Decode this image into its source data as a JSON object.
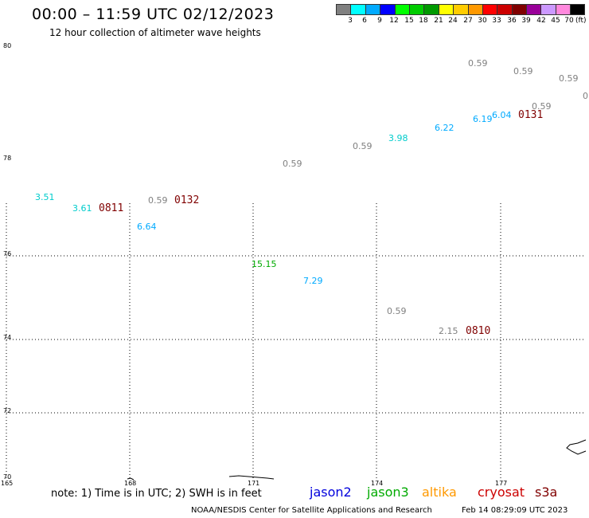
{
  "header": {
    "title": "00:00 – 11:59 UTC 02/12/2023",
    "subtitle": "12 hour collection of altimeter wave heights"
  },
  "legend": {
    "unit": "(ft)",
    "bins": [
      {
        "label": "3",
        "color": "#808080"
      },
      {
        "label": "6",
        "color": "#00ffff"
      },
      {
        "label": "9",
        "color": "#00aaff"
      },
      {
        "label": "12",
        "color": "#0000ff"
      },
      {
        "label": "15",
        "color": "#00ff00"
      },
      {
        "label": "18",
        "color": "#00cc00"
      },
      {
        "label": "21",
        "color": "#009900"
      },
      {
        "label": "24",
        "color": "#ffff00"
      },
      {
        "label": "27",
        "color": "#ffcc00"
      },
      {
        "label": "30",
        "color": "#ff9900"
      },
      {
        "label": "33",
        "color": "#ff0000"
      },
      {
        "label": "36",
        "color": "#cc0000"
      },
      {
        "label": "39",
        "color": "#800000"
      },
      {
        "label": "42",
        "color": "#990099"
      },
      {
        "label": "45",
        "color": "#cc99ff"
      },
      {
        "label": "70",
        "color": "#ff88dd"
      },
      {
        "label": "",
        "color": "#000000"
      }
    ]
  },
  "map": {
    "lat_labels": [
      "80",
      "78",
      "76",
      "74",
      "72",
      "70"
    ],
    "lon_labels": [
      "165",
      "168",
      "171",
      "174",
      "177"
    ],
    "wave_heights": [
      {
        "value": "0.59",
        "color": "#808080"
      },
      {
        "value": "0.59",
        "color": "#808080"
      },
      {
        "value": "0.59",
        "color": "#808080"
      },
      {
        "value": "0",
        "color": "#808080"
      },
      {
        "value": "0.59",
        "color": "#808080"
      },
      {
        "value": "6.04",
        "color": "#00aaff"
      },
      {
        "value": "6.19",
        "color": "#00aaff"
      },
      {
        "value": "6.22",
        "color": "#00aaff"
      },
      {
        "value": "3.98",
        "color": "#00cccc"
      },
      {
        "value": "0.59",
        "color": "#808080"
      },
      {
        "value": "0.59",
        "color": "#808080"
      },
      {
        "value": "3.51",
        "color": "#00cccc"
      },
      {
        "value": "3.61",
        "color": "#00cccc"
      },
      {
        "value": "0.59",
        "color": "#808080"
      },
      {
        "value": "6.64",
        "color": "#00aaff"
      },
      {
        "value": "15.15",
        "color": "#00aa00"
      },
      {
        "value": "7.29",
        "color": "#00aaff"
      },
      {
        "value": "0.59",
        "color": "#808080"
      },
      {
        "value": "2.15",
        "color": "#808080"
      }
    ],
    "pass_times": [
      "0131",
      "0811",
      "0132",
      "0810"
    ],
    "pass_color": "#800000"
  },
  "footer": {
    "note": "note:  1) Time is in UTC;  2) SWH is in feet",
    "missions": [
      {
        "name": "jason2",
        "color": "#0000dd"
      },
      {
        "name": "jason3",
        "color": "#00aa00"
      },
      {
        "name": "altika",
        "color": "#ff9900"
      },
      {
        "name": "cryosat",
        "color": "#cc0000"
      },
      {
        "name": "s3a",
        "color": "#800000"
      }
    ],
    "credit": "NOAA/NESDIS Center for Satellite Applications and Research",
    "timestamp": "Feb 14 08:29:09 UTC 2023"
  }
}
